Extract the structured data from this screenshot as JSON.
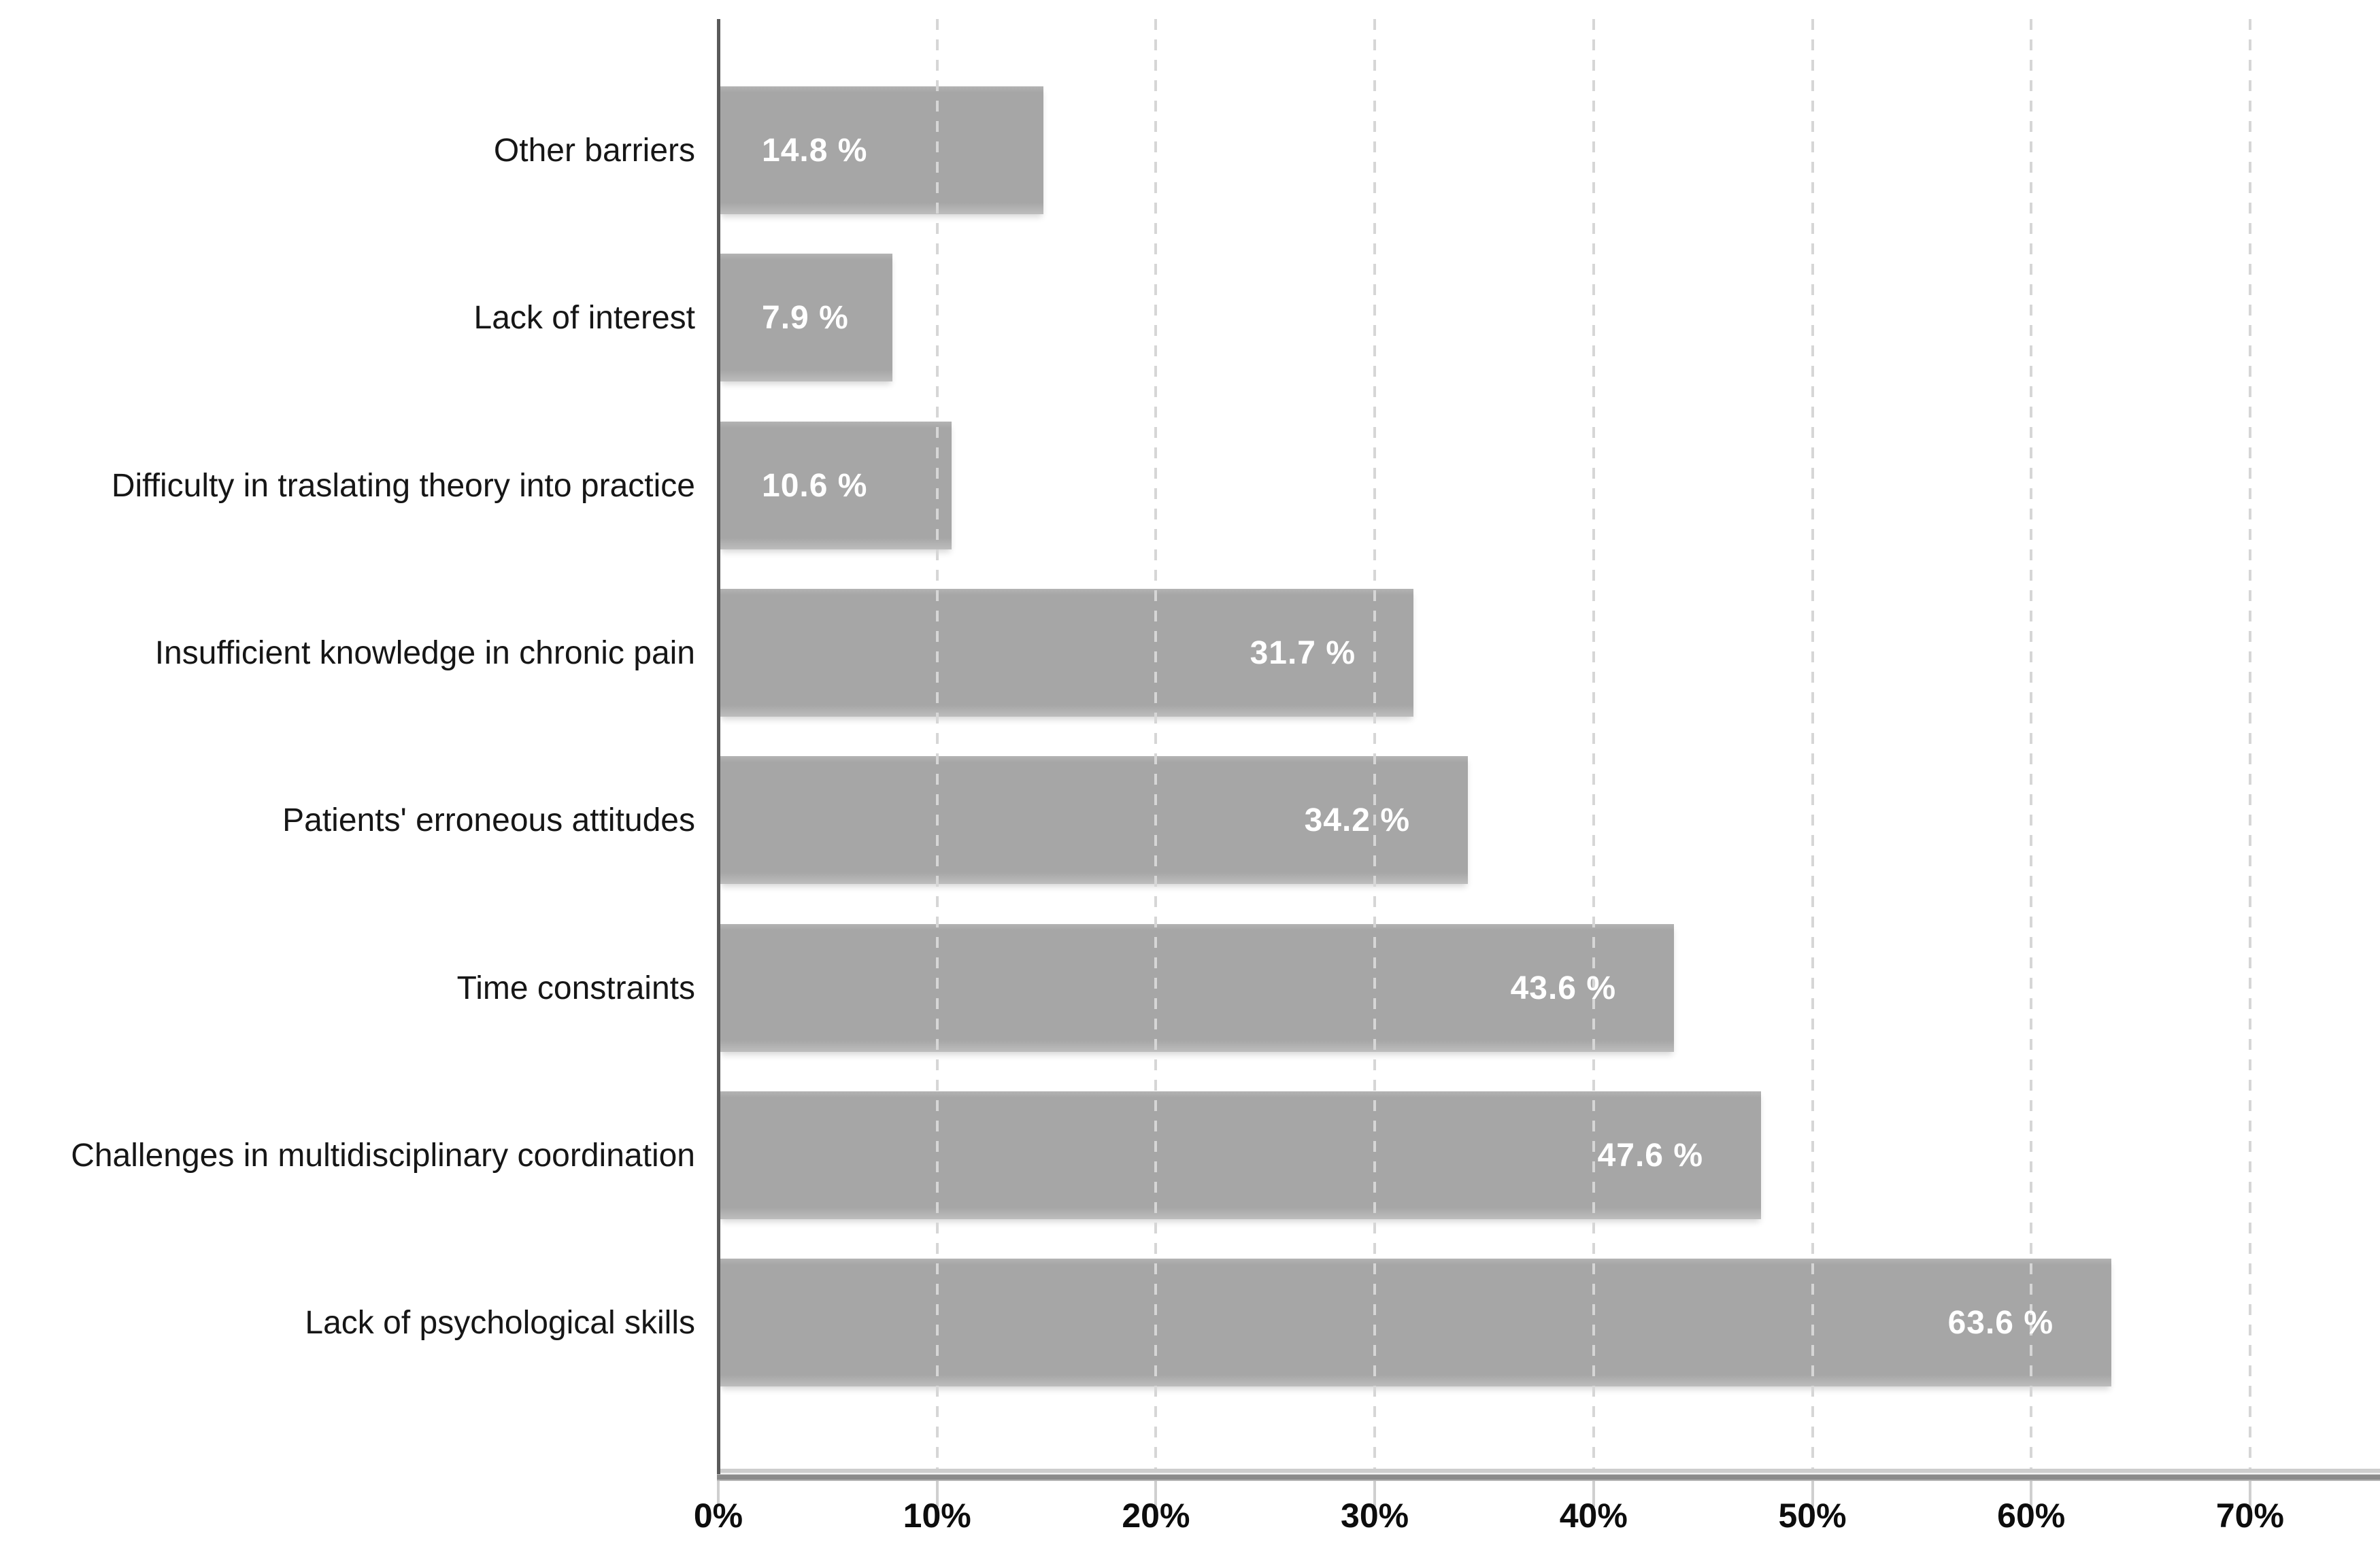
{
  "chart_data": {
    "type": "bar",
    "orientation": "horizontal",
    "title": "",
    "xlabel": "",
    "ylabel": "",
    "categories": [
      "Other barriers",
      "Lack of interest",
      "Difficulty in traslating theory into practice",
      "Insufficient knowledge in chronic pain",
      "Patients' erroneous attitudes",
      "Time constraints",
      "Challenges in multidisciplinary coordination",
      "Lack of psychological skills"
    ],
    "values": [
      14.8,
      7.9,
      10.6,
      31.7,
      34.2,
      43.6,
      47.6,
      63.6
    ],
    "value_labels": [
      "14.8 %",
      "7.9 %",
      "10.6 %",
      "31.7 %",
      "34.2 %",
      "43.6 %",
      "47.6 %",
      "63.6 %"
    ],
    "x_ticks": [
      "0%",
      "10%",
      "20%",
      "30%",
      "40%",
      "50%",
      "60%",
      "70%"
    ],
    "x_tick_values": [
      0,
      10,
      20,
      30,
      40,
      50,
      60,
      70
    ],
    "xlim": [
      0,
      76
    ],
    "grid": "vertical-dashed",
    "legend": "none",
    "colors": {
      "bar": "#a6a6a6",
      "value_text": "#ffffff",
      "grid": "#d6d6d6",
      "axis_line": "#5a5a5a",
      "baseline_dark": "#8a8a8a",
      "baseline_light": "#cdcdcd",
      "tick": "#cfcfcf",
      "label_text": "#161616",
      "tick_label_text": "#0d0d0d",
      "background": "#ffffff"
    }
  }
}
